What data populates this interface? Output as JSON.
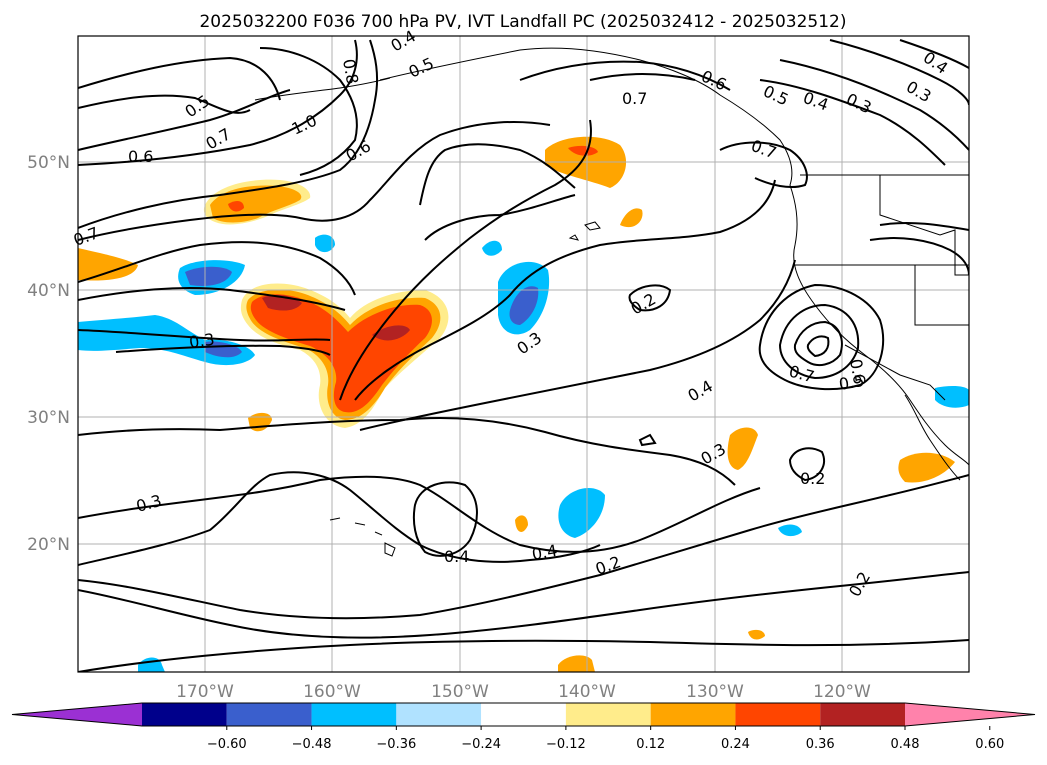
{
  "title": "2025032200 F036 700 hPa PV, IVT Landfall PC (2025032412 - 2025032512)",
  "longitude_labels": [
    "170°W",
    "160°W",
    "150°W",
    "140°W",
    "130°W",
    "120°W"
  ],
  "latitude_labels": [
    "50°N",
    "40°N",
    "30°N",
    "20°N"
  ],
  "colorbar": {
    "ticks": [
      "−0.60",
      "−0.48",
      "−0.36",
      "−0.24",
      "−0.12",
      "0.12",
      "0.24",
      "0.36",
      "0.48",
      "0.60"
    ],
    "colors": [
      "#9b30d3",
      "#00008b",
      "#3a5fcd",
      "#00bfff",
      "#b0e2ff",
      "#ffffff",
      "#ffec8b",
      "#ffa500",
      "#ff4500",
      "#b22222",
      "#ff82ab"
    ]
  },
  "contour_labels": [
    "0.5",
    "0.7",
    "0.6",
    "1.0",
    "0.6",
    "0.4",
    "0.5",
    "0.8",
    "0.7",
    "0.6",
    "0.5",
    "0.4",
    "0.3",
    "0.3",
    "0.4",
    "0.7",
    "0.7",
    "0.3",
    "0.2",
    "0.3",
    "0.4",
    "0.3",
    "0.7",
    "0.6",
    "0.5",
    "0.3",
    "0.2",
    "0.4",
    "0.4",
    "0.2",
    "0.2"
  ]
}
